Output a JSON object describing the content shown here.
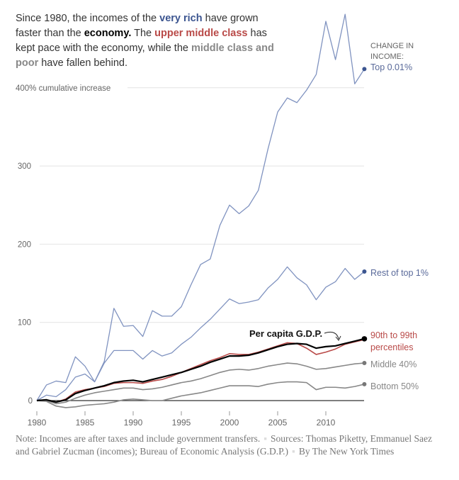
{
  "headline": {
    "p1": "Since 1980, the incomes of the ",
    "very_rich": "very rich",
    "p2": " have grown faster than the ",
    "economy": "economy.",
    "p3": " The ",
    "upper": "upper middle class",
    "p4": " has kept pace with the economy, while the ",
    "middle": "middle class and poor",
    "p5": " have fallen behind."
  },
  "note": {
    "text": "Note: Incomes are after taxes and include government transfers.",
    "sources": "Sources: Thomas Piketty, Emmanuel Saez and Gabriel Zucman (incomes); Bureau of Economic Analysis (G.D.P.)",
    "byline": "By The New York Times"
  },
  "legend_heading": [
    "CHANGE IN",
    "INCOME:"
  ],
  "chart_data": {
    "type": "line",
    "ylabel": "400% cumulative increase",
    "ylim": [
      -15,
      450
    ],
    "xlim": [
      1980,
      2014
    ],
    "x_ticks": [
      1980,
      1985,
      1990,
      1995,
      2000,
      2005,
      2010
    ],
    "y_ticks": [
      {
        "v": 0,
        "label": "0"
      },
      {
        "v": 100,
        "label": "100"
      },
      {
        "v": 200,
        "label": "200"
      },
      {
        "v": 300,
        "label": "300"
      },
      {
        "v": 400,
        "label": "400% cumulative increase"
      }
    ],
    "grid": true,
    "start_year": 1980,
    "series": [
      {
        "name": "Top 0.01%",
        "label": [
          "Top 0.01%"
        ],
        "color": "#8093c0",
        "dot": "#3c5590",
        "width": 1.3,
        "values": [
          0,
          20,
          25,
          23,
          56,
          44,
          24,
          50,
          118,
          95,
          96,
          82,
          115,
          108,
          108,
          120,
          148,
          174,
          181,
          224,
          250,
          239,
          249,
          269,
          322,
          369,
          387,
          381,
          397,
          417,
          485,
          436,
          494,
          405,
          424
        ]
      },
      {
        "name": "Rest of top 1%",
        "label": [
          "Rest of top 1%"
        ],
        "color": "#8093c0",
        "dot": "#3c5590",
        "width": 1.3,
        "values": [
          0,
          7,
          5,
          14,
          30,
          34,
          24,
          48,
          64,
          64,
          64,
          53,
          64,
          57,
          61,
          72,
          81,
          93,
          104,
          117,
          130,
          124,
          126,
          129,
          144,
          155,
          171,
          157,
          148,
          129,
          145,
          152,
          169,
          155,
          165
        ]
      },
      {
        "name": "Bottom 50%",
        "label": [
          "Bottom 50%"
        ],
        "color": "#888",
        "dot": "#777",
        "width": 1.6,
        "values": [
          0,
          -1,
          -7,
          -9,
          -8,
          -6,
          -5,
          -4,
          -2,
          1,
          2,
          1,
          0,
          0,
          3,
          6,
          8,
          10,
          13,
          16,
          19,
          19,
          19,
          18,
          21,
          23,
          24,
          24,
          23,
          14,
          17,
          17,
          16,
          18,
          21
        ]
      },
      {
        "name": "Middle 40%",
        "label": [
          "Middle 40%"
        ],
        "color": "#888",
        "dot": "#777",
        "width": 1.6,
        "values": [
          0,
          0,
          -4,
          -2,
          3,
          7,
          10,
          12,
          14,
          16,
          16,
          14,
          15,
          17,
          20,
          23,
          25,
          28,
          32,
          36,
          39,
          40,
          39,
          41,
          44,
          46,
          48,
          47,
          44,
          40,
          41,
          43,
          45,
          47,
          48
        ]
      },
      {
        "name": "90th to 99th percentiles",
        "label": [
          "90th to 99th",
          "percentiles"
        ],
        "color": "#b94a48",
        "dot": null,
        "width": 1.6,
        "values": [
          0,
          1,
          -2,
          2,
          11,
          14,
          16,
          18,
          22,
          23,
          23,
          22,
          25,
          27,
          31,
          36,
          41,
          46,
          51,
          55,
          60,
          59,
          59,
          62,
          66,
          70,
          74,
          73,
          67,
          59,
          62,
          66,
          72,
          75,
          78
        ]
      },
      {
        "name": "Per capita G.D.P.",
        "label": [
          "Per capita G.D.P."
        ],
        "color": "#000",
        "dot": "#000",
        "width": 2.2,
        "values": [
          0,
          1,
          -2,
          1,
          9,
          13,
          16,
          19,
          23,
          25,
          26,
          24,
          27,
          30,
          33,
          36,
          40,
          44,
          49,
          53,
          57,
          57,
          58,
          61,
          65,
          69,
          72,
          73,
          72,
          67,
          69,
          70,
          73,
          76,
          79
        ]
      }
    ]
  }
}
